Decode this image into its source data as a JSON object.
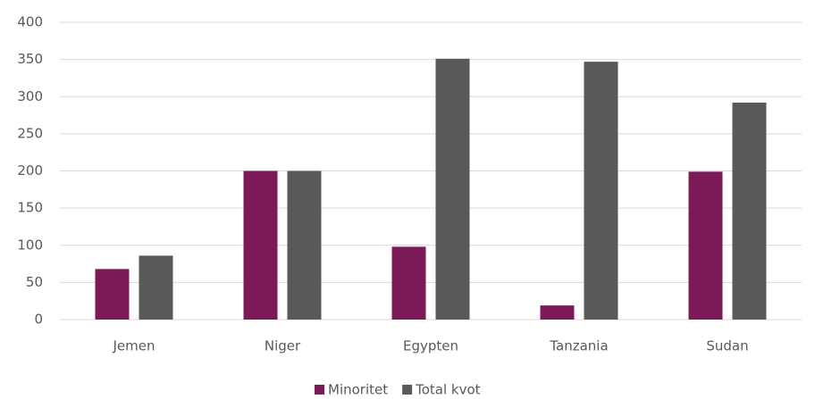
{
  "chart_data": {
    "type": "bar",
    "categories": [
      "Jemen",
      "Niger",
      "Egypten",
      "Tanzania",
      "Sudan"
    ],
    "series": [
      {
        "name": "Minoritet",
        "color": "#7b1a56",
        "values": [
          68,
          200,
          98,
          19,
          199
        ]
      },
      {
        "name": "Total kvot",
        "color": "#595959",
        "values": [
          86,
          200,
          351,
          347,
          292
        ]
      }
    ],
    "ylim": [
      0,
      400
    ],
    "yticks": [
      0,
      50,
      100,
      150,
      200,
      250,
      300,
      350,
      400
    ],
    "grid": true,
    "legend": "bottom"
  }
}
